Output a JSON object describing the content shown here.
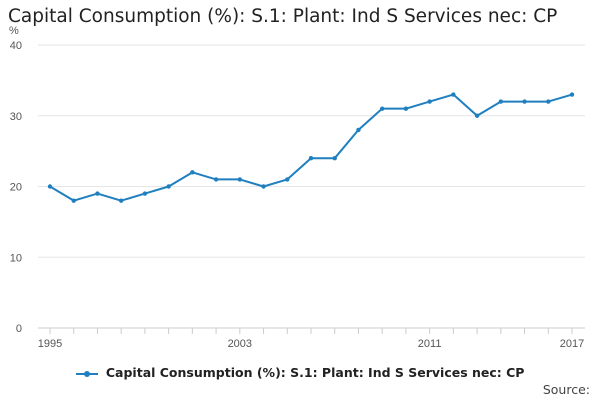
{
  "chart_data": {
    "type": "line",
    "title": "Capital Consumption (%): S.1: Plant: Ind S Services nec: CP",
    "ylabel": "%",
    "xlabel": "",
    "ylim": [
      0,
      40
    ],
    "yticks": [
      0,
      10,
      20,
      30,
      40
    ],
    "xlim": [
      1995,
      2017
    ],
    "xtick_labels": [
      "1995",
      "2003",
      "2011",
      "2017"
    ],
    "grid": "horizontal",
    "legend_position": "bottom",
    "series": [
      {
        "name": "Capital Consumption (%): S.1: Plant: Ind S Services nec: CP",
        "color": "#1f7fbf",
        "x": [
          1995,
          1996,
          1997,
          1998,
          1999,
          2000,
          2001,
          2002,
          2003,
          2004,
          2005,
          2006,
          2007,
          2008,
          2009,
          2010,
          2011,
          2012,
          2013,
          2014,
          2015,
          2016,
          2017
        ],
        "values": [
          20,
          18,
          19,
          18,
          19,
          20,
          22,
          21,
          21,
          20,
          21,
          24,
          24,
          28,
          31,
          31,
          32,
          33,
          30,
          32,
          32,
          32,
          33
        ]
      }
    ]
  },
  "footer": {
    "source_label": "Source:"
  }
}
